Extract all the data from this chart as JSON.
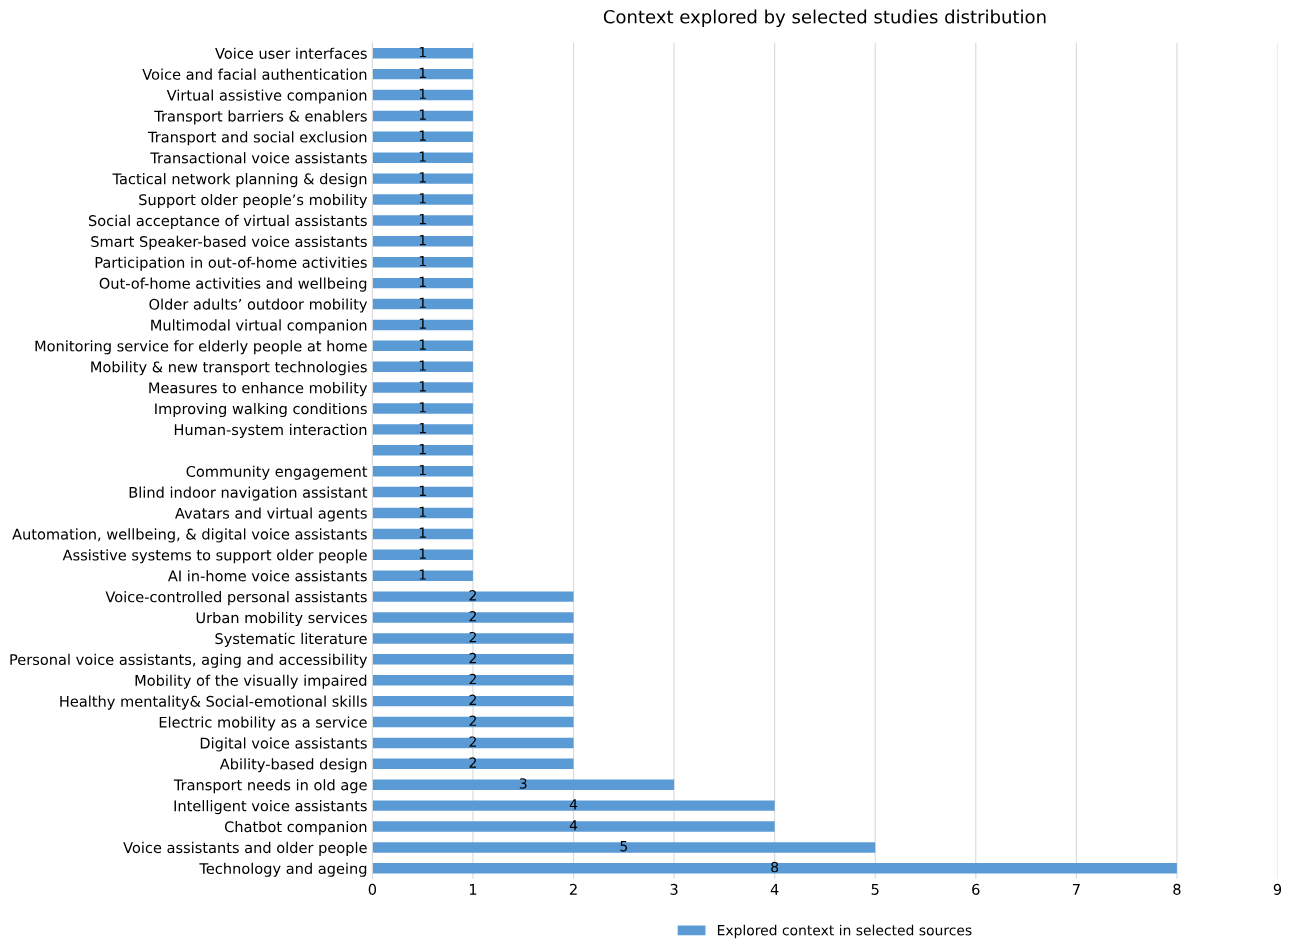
{
  "chart_data": {
    "type": "bar",
    "orientation": "horizontal",
    "title": "Context explored by selected studies distribution",
    "categories": [
      "Voice user interfaces",
      "Voice and facial authentication",
      "Virtual assistive companion",
      "Transport barriers & enablers",
      "Transport and social exclusion",
      "Transactional voice assistants",
      "Tactical network planning & design",
      "Support older people’s mobility",
      "Social acceptance of virtual assistants",
      "Smart Speaker-based voice assistants",
      "Participation in out-of-home activities",
      "Out-of-home activities and wellbeing",
      "Older adults’ outdoor mobility",
      "Multimodal virtual companion",
      "Monitoring service for elderly people at home",
      "Mobility & new transport technologies",
      "Measures to enhance mobility",
      "Improving walking conditions",
      "Human-system interaction",
      null,
      "Community engagement",
      "Blind indoor navigation assistant",
      "Avatars and virtual agents",
      "Automation, wellbeing, & digital voice assistants",
      "Assistive systems to support older people",
      "AI in-home voice assistants",
      "Voice-controlled personal assistants",
      "Urban mobility services",
      "Systematic literature",
      "Personal voice assistants, aging and accessibility",
      "Mobility of the visually impaired",
      "Healthy mentality& Social-emotional skills",
      "Electric mobility as a service",
      "Digital voice assistants",
      "Ability-based design",
      "Transport needs in old age",
      "Intelligent voice assistants",
      "Chatbot companion",
      "Voice assistants and older people",
      "Technology and ageing"
    ],
    "series": [
      {
        "name": "Explored context in selected sources",
        "color": "#5b9bd5",
        "values": [
          1,
          1,
          1,
          1,
          1,
          1,
          1,
          1,
          1,
          1,
          1,
          1,
          1,
          1,
          1,
          1,
          1,
          1,
          1,
          1,
          1,
          1,
          1,
          1,
          1,
          1,
          2,
          2,
          2,
          2,
          2,
          2,
          2,
          2,
          2,
          3,
          4,
          4,
          5,
          8
        ]
      }
    ],
    "xlim": [
      0,
      9
    ],
    "xticks": [
      0,
      1,
      2,
      3,
      4,
      5,
      6,
      7,
      8,
      9
    ],
    "grid": "x",
    "legend": "bottom",
    "data_labels": true
  }
}
